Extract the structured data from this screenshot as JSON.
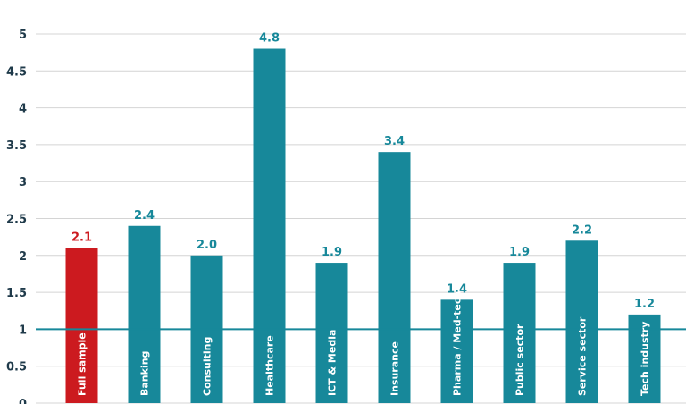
{
  "chart_data": {
    "type": "bar",
    "categories": [
      "Full sample",
      "Banking",
      "Consulting",
      "Healthcare",
      "ICT & Media",
      "Insurance",
      "Pharma / Med-tech",
      "Public sector",
      "Service sector",
      "Tech industry"
    ],
    "values": [
      2.1,
      2.4,
      2.0,
      4.8,
      1.9,
      3.4,
      1.4,
      1.9,
      2.2,
      1.2
    ],
    "value_labels": [
      "2.1",
      "2.4",
      "2.0",
      "4.8",
      "1.9",
      "3.4",
      "1.4",
      "1.9",
      "2.2",
      "1.2"
    ],
    "yticks": [
      0,
      0.5,
      1,
      1.5,
      2,
      2.5,
      3,
      3.5,
      4,
      4.5,
      5
    ],
    "ytick_labels": [
      "0",
      "0.5",
      "1",
      "1.5",
      "2",
      "2.5",
      "3",
      "3.5",
      "4",
      "4.5",
      "5"
    ],
    "ylim": [
      0,
      5
    ],
    "reference_line": 1,
    "grid": true,
    "title": "",
    "xlabel": "",
    "ylabel": "",
    "colors": {
      "highlight": "#cc1a1f",
      "bar": "#17889a",
      "grid": "#d4d4d4",
      "reference": "#17889a",
      "tick_text": "#1f3a4a"
    },
    "highlight_index": 0
  }
}
